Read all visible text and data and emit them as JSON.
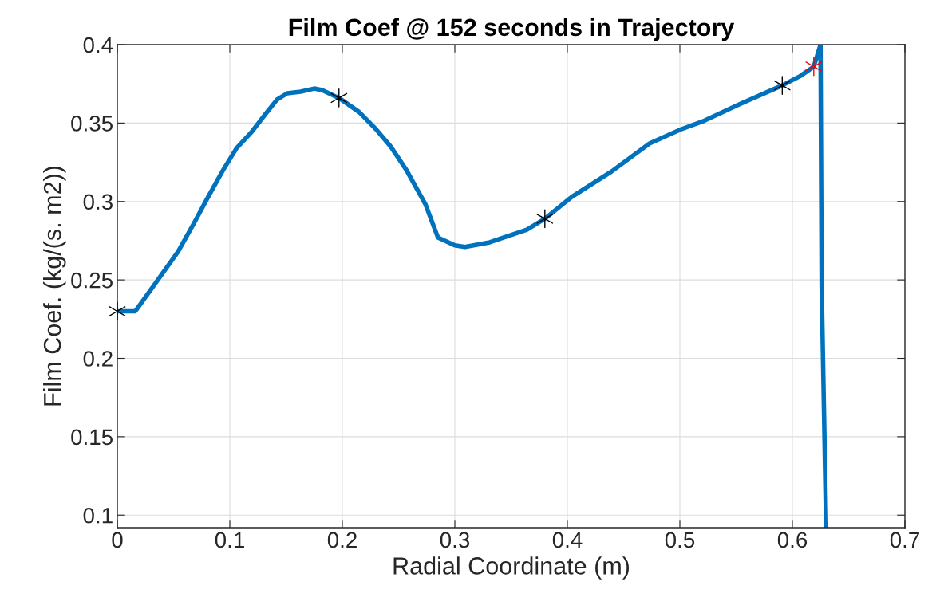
{
  "chart_data": {
    "type": "line",
    "title": "Film Coef @ 152 seconds in Trajectory",
    "xlabel": "Radial Coordinate (m)",
    "ylabel": "Film Coef. (kg/(s. m2))",
    "xlim": [
      0,
      0.7
    ],
    "ylim": [
      0.092,
      0.4
    ],
    "xticks": [
      0,
      0.1,
      0.2,
      0.3,
      0.4,
      0.5,
      0.6,
      0.7
    ],
    "yticks": [
      0.1,
      0.15,
      0.2,
      0.25,
      0.3,
      0.35,
      0.4
    ],
    "grid": true,
    "series": [
      {
        "color": "#0072bd",
        "marker": "none",
        "x": [
          0,
          0.016,
          0.035,
          0.054,
          0.068,
          0.08,
          0.094,
          0.106,
          0.119,
          0.132,
          0.142,
          0.151,
          0.163,
          0.175,
          0.182,
          0.197,
          0.215,
          0.23,
          0.243,
          0.257,
          0.274,
          0.285,
          0.3,
          0.309,
          0.331,
          0.364,
          0.38,
          0.404,
          0.439,
          0.473,
          0.501,
          0.52,
          0.553,
          0.591,
          0.607,
          0.619,
          0.625,
          0.626,
          0.63
        ],
        "values": [
          0.23,
          0.23,
          0.249,
          0.268,
          0.286,
          0.302,
          0.32,
          0.334,
          0.344,
          0.356,
          0.365,
          0.369,
          0.37,
          0.372,
          0.371,
          0.366,
          0.357,
          0.346,
          0.335,
          0.32,
          0.298,
          0.277,
          0.272,
          0.271,
          0.274,
          0.282,
          0.289,
          0.303,
          0.319,
          0.337,
          0.346,
          0.351,
          0.362,
          0.374,
          0.38,
          0.386,
          0.4,
          0.246,
          0.092
        ]
      },
      {
        "type": "scatter",
        "color": "#000000",
        "marker": "cross",
        "x": [
          0,
          0.197,
          0.38,
          0.591
        ],
        "values": [
          0.23,
          0.366,
          0.289,
          0.374
        ]
      },
      {
        "type": "scatter",
        "color": "#ff0000",
        "marker": "cross",
        "x": [
          0.619
        ],
        "values": [
          0.386
        ]
      }
    ]
  }
}
